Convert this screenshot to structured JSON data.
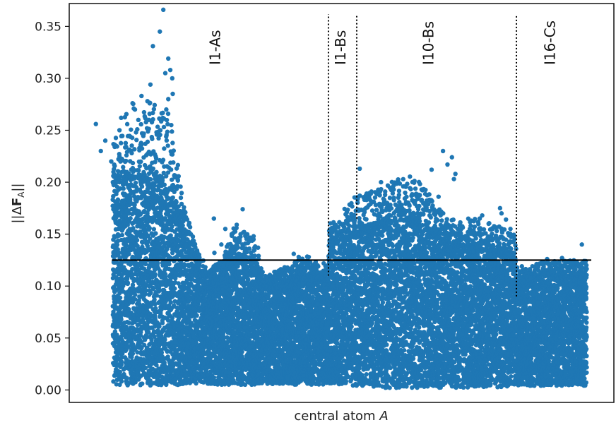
{
  "chart_data": {
    "type": "scatter",
    "xlabel_text": "central atom ",
    "xlabel_var": "A",
    "ylabel": "||ΔF_A||",
    "ylabel_parts": {
      "pre": "||Δ",
      "bold": "F",
      "sub": "A",
      "post": "||"
    },
    "ylim": [
      -0.012,
      0.372
    ],
    "xlim": [
      0,
      1000
    ],
    "yticks": [
      0.0,
      0.05,
      0.1,
      0.15,
      0.2,
      0.25,
      0.3,
      0.35
    ],
    "ytick_labels": [
      "0.00",
      "0.05",
      "0.10",
      "0.15",
      "0.20",
      "0.25",
      "0.30",
      "0.35"
    ],
    "grid": false,
    "point_color": "#1f77b4",
    "threshold": {
      "y": 0.125,
      "x_range": [
        45,
        1000
      ]
    },
    "regions": [
      {
        "label": "I1-As",
        "x_label": 250,
        "x_start": 45,
        "x_end": 480
      },
      {
        "label": "I1-Bs",
        "x_label": 503,
        "x_start": 480,
        "x_end": 537
      },
      {
        "label": "I10-Bs",
        "x_label": 680,
        "x_start": 537,
        "x_end": 859
      },
      {
        "label": "I16-Cs",
        "x_label": 925,
        "x_start": 859,
        "x_end": 1000
      }
    ],
    "separators": [
      {
        "x": 480,
        "y_from": 0.11,
        "y_to": 0.372
      },
      {
        "x": 537,
        "y_from": 0.165,
        "y_to": 0.372
      },
      {
        "x": 859,
        "y_from": 0.09,
        "y_to": 0.372
      }
    ],
    "envelope": [
      {
        "x": 45,
        "base": 0.005,
        "top": 0.2,
        "spread": 0.05
      },
      {
        "x": 100,
        "base": 0.004,
        "top": 0.205,
        "spread": 0.08
      },
      {
        "x": 155,
        "base": 0.004,
        "top": 0.2,
        "spread": 0.07
      },
      {
        "x": 205,
        "base": 0.006,
        "top": 0.13,
        "spread": 0.02
      },
      {
        "x": 235,
        "base": 0.006,
        "top": 0.1,
        "spread": 0.015
      },
      {
        "x": 265,
        "base": 0.005,
        "top": 0.11,
        "spread": 0.015
      },
      {
        "x": 290,
        "base": 0.005,
        "top": 0.13,
        "spread": 0.03
      },
      {
        "x": 330,
        "base": 0.005,
        "top": 0.12,
        "spread": 0.025
      },
      {
        "x": 350,
        "base": 0.006,
        "top": 0.1,
        "spread": 0.01
      },
      {
        "x": 400,
        "base": 0.005,
        "top": 0.105,
        "spread": 0.015
      },
      {
        "x": 435,
        "base": 0.005,
        "top": 0.11,
        "spread": 0.02
      },
      {
        "x": 478,
        "base": 0.005,
        "top": 0.105,
        "spread": 0.015
      },
      {
        "x": 482,
        "base": 0.005,
        "top": 0.14,
        "spread": 0.02
      },
      {
        "x": 530,
        "base": 0.004,
        "top": 0.15,
        "spread": 0.035
      },
      {
        "x": 580,
        "base": 0.002,
        "top": 0.16,
        "spread": 0.035
      },
      {
        "x": 650,
        "base": 0.002,
        "top": 0.165,
        "spread": 0.045
      },
      {
        "x": 720,
        "base": 0.002,
        "top": 0.14,
        "spread": 0.025
      },
      {
        "x": 790,
        "base": 0.002,
        "top": 0.135,
        "spread": 0.03
      },
      {
        "x": 855,
        "base": 0.003,
        "top": 0.13,
        "spread": 0.02
      },
      {
        "x": 862,
        "base": 0.004,
        "top": 0.1,
        "spread": 0.015
      },
      {
        "x": 920,
        "base": 0.004,
        "top": 0.11,
        "spread": 0.015
      },
      {
        "x": 1000,
        "base": 0.004,
        "top": 0.11,
        "spread": 0.015
      }
    ],
    "outliers": [
      [
        147,
        0.366
      ],
      [
        140,
        0.345
      ],
      [
        126,
        0.331
      ],
      [
        157,
        0.319
      ],
      [
        161,
        0.308
      ],
      [
        151,
        0.305
      ],
      [
        165,
        0.3
      ],
      [
        121,
        0.294
      ],
      [
        157,
        0.28
      ],
      [
        166,
        0.285
      ],
      [
        103,
        0.283
      ],
      [
        85,
        0.276
      ],
      [
        153,
        0.27
      ],
      [
        115,
        0.278
      ],
      [
        11,
        0.256
      ],
      [
        62,
        0.262
      ],
      [
        92,
        0.248
      ],
      [
        30,
        0.24
      ],
      [
        118,
        0.26
      ],
      [
        163,
        0.255
      ],
      [
        141,
        0.25
      ],
      [
        21,
        0.23
      ],
      [
        42,
        0.22
      ],
      [
        249,
        0.165
      ],
      [
        307,
        0.174
      ],
      [
        295,
        0.159
      ],
      [
        272,
        0.155
      ],
      [
        329,
        0.148
      ],
      [
        310,
        0.152
      ],
      [
        285,
        0.15
      ],
      [
        264,
        0.14
      ],
      [
        338,
        0.137
      ],
      [
        410,
        0.131
      ],
      [
        420,
        0.128
      ],
      [
        250,
        0.132
      ],
      [
        543,
        0.213
      ],
      [
        557,
        0.189
      ],
      [
        565,
        0.179
      ],
      [
        586,
        0.2
      ],
      [
        612,
        0.185
      ],
      [
        633,
        0.196
      ],
      [
        643,
        0.178
      ],
      [
        651,
        0.188
      ],
      [
        663,
        0.177
      ],
      [
        688,
        0.212
      ],
      [
        711,
        0.23
      ],
      [
        720,
        0.217
      ],
      [
        729,
        0.224
      ],
      [
        733,
        0.203
      ],
      [
        736,
        0.208
      ],
      [
        702,
        0.186
      ],
      [
        668,
        0.183
      ],
      [
        596,
        0.173
      ],
      [
        532,
        0.165
      ],
      [
        522,
        0.158
      ],
      [
        487,
        0.156
      ],
      [
        626,
        0.17
      ],
      [
        679,
        0.173
      ],
      [
        785,
        0.165
      ],
      [
        803,
        0.16
      ],
      [
        826,
        0.175
      ],
      [
        829,
        0.17
      ],
      [
        838,
        0.164
      ],
      [
        847,
        0.155
      ],
      [
        811,
        0.155
      ],
      [
        776,
        0.151
      ],
      [
        765,
        0.155
      ],
      [
        790,
        0.168
      ],
      [
        870,
        0.119
      ],
      [
        921,
        0.126
      ],
      [
        951,
        0.127
      ],
      [
        991,
        0.14
      ],
      [
        908,
        0.122
      ],
      [
        958,
        0.124
      ],
      [
        975,
        0.117
      ],
      [
        888,
        0.108
      ],
      [
        980,
        0.112
      ]
    ]
  }
}
